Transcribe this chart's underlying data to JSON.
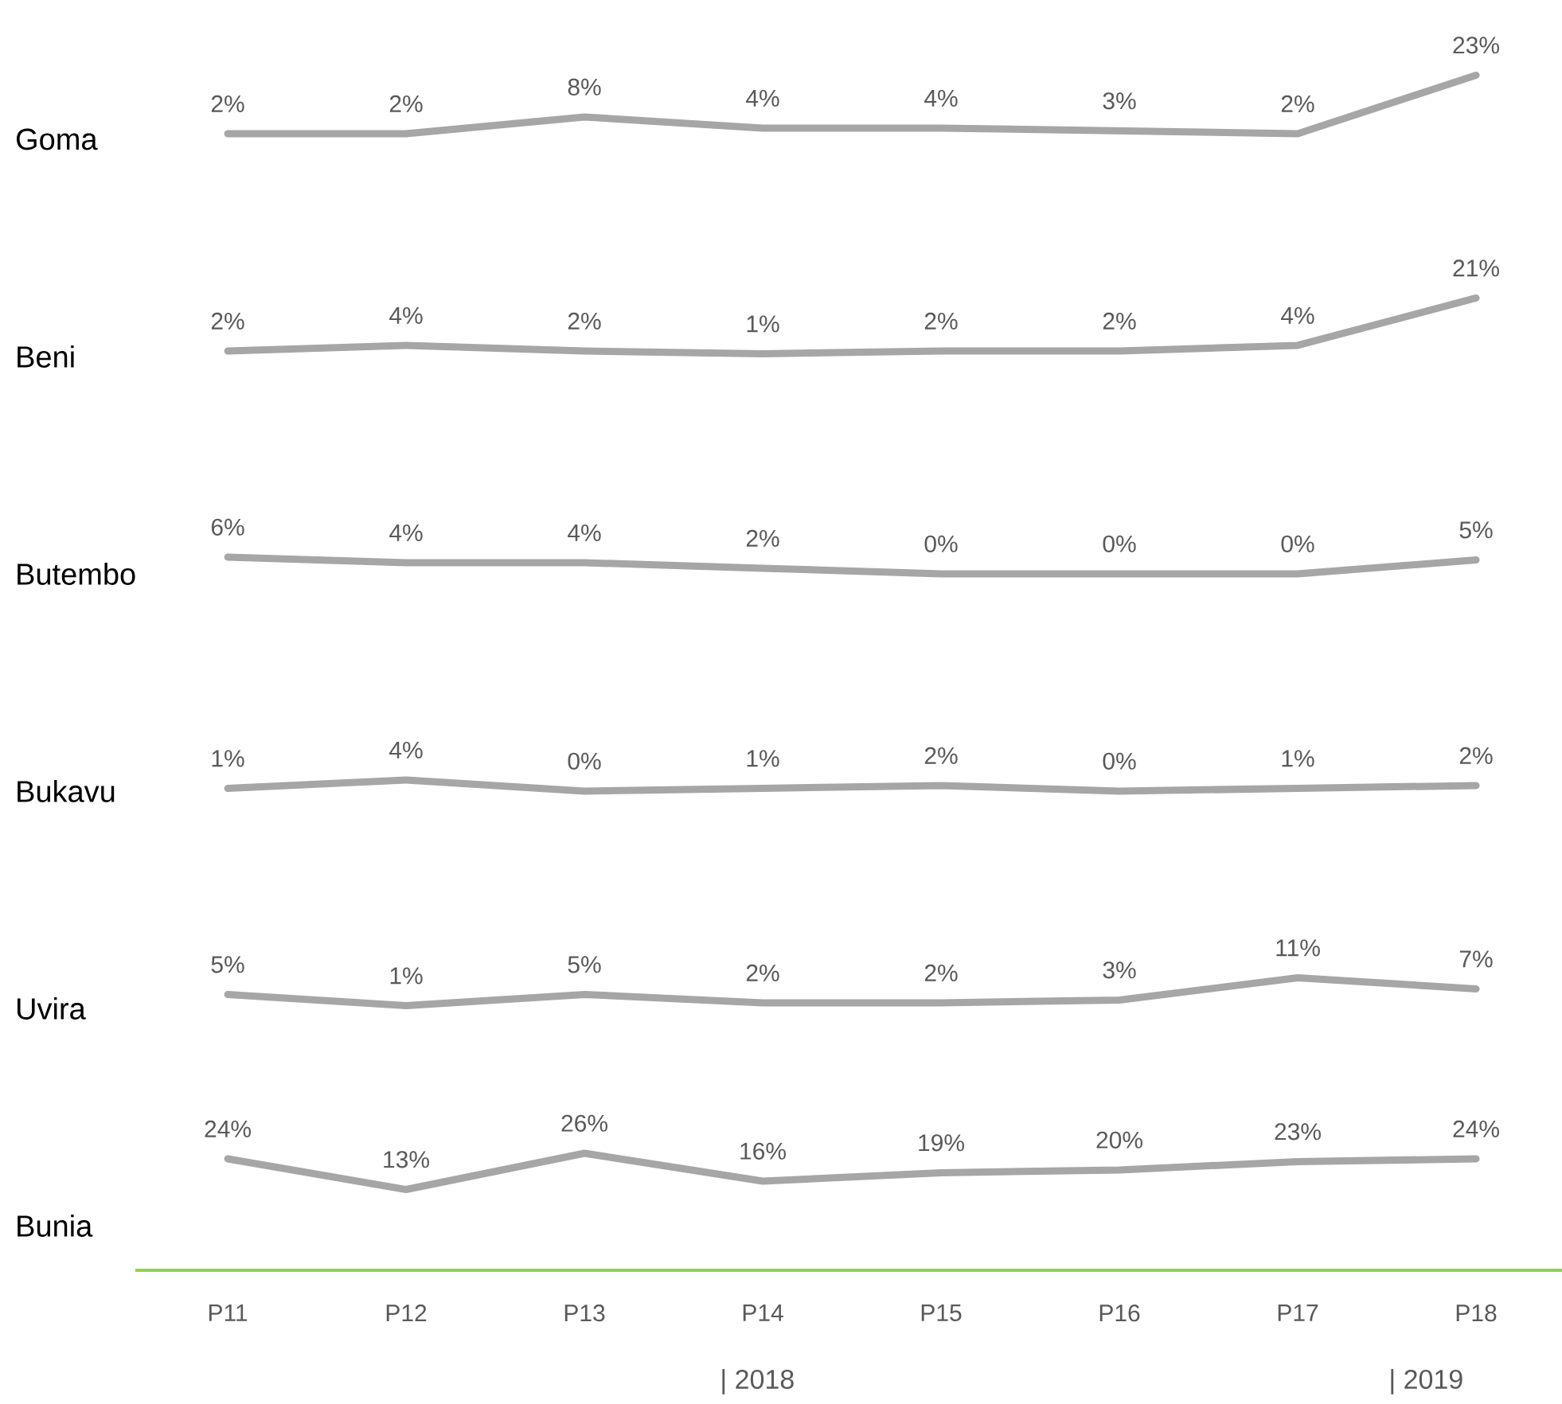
{
  "chart_data": [
    {
      "type": "line",
      "ylabel": "Goma",
      "tick_labels": false,
      "series": [
        {
          "color": "#a6a6a6",
          "values": [
            2,
            2,
            8,
            4,
            4,
            3,
            2,
            23
          ],
          "value_labels": [
            "2%",
            "2%",
            "8%",
            "4%",
            "4%",
            "3%",
            "2%",
            "23%"
          ]
        }
      ]
    },
    {
      "type": "line",
      "ylabel": "Beni",
      "tick_labels": false,
      "series": [
        {
          "color": "#a6a6a6",
          "values": [
            2,
            4,
            2,
            1,
            2,
            2,
            4,
            21
          ],
          "value_labels": [
            "2%",
            "4%",
            "2%",
            "1%",
            "2%",
            "2%",
            "4%",
            "21%"
          ]
        }
      ]
    },
    {
      "type": "line",
      "ylabel": "Butembo",
      "tick_labels": false,
      "series": [
        {
          "color": "#a6a6a6",
          "values": [
            6,
            4,
            4,
            2,
            0,
            0,
            0,
            5
          ],
          "value_labels": [
            "6%",
            "4%",
            "4%",
            "2%",
            "0%",
            "0%",
            "0%",
            "5%"
          ]
        }
      ]
    },
    {
      "type": "line",
      "ylabel": "Bukavu",
      "tick_labels": false,
      "series": [
        {
          "color": "#a6a6a6",
          "values": [
            1,
            4,
            0,
            1,
            2,
            0,
            1,
            2
          ],
          "value_labels": [
            "1%",
            "4%",
            "0%",
            "1%",
            "2%",
            "0%",
            "1%",
            "2%"
          ]
        }
      ]
    },
    {
      "type": "line",
      "ylabel": "Uvira",
      "tick_labels": false,
      "series": [
        {
          "color": "#a6a6a6",
          "values": [
            5,
            1,
            5,
            2,
            2,
            3,
            11,
            7
          ],
          "value_labels": [
            "5%",
            "1%",
            "5%",
            "2%",
            "2%",
            "3%",
            "11%",
            "7%"
          ]
        }
      ]
    },
    {
      "type": "line",
      "ylabel": "Bunia",
      "categories": [
        "P11",
        "P12",
        "P13",
        "P14",
        "P15",
        "P16",
        "P17",
        "P18"
      ],
      "tick_labels": "x",
      "series": [
        {
          "color": "#a6a6a6",
          "values": [
            24,
            13,
            26,
            16,
            19,
            20,
            23,
            24
          ],
          "value_labels": [
            "24%",
            "13%",
            "26%",
            "16%",
            "19%",
            "20%",
            "23%",
            "24%"
          ]
        }
      ],
      "annotations": [
        "| 2018",
        "| 2019"
      ]
    }
  ]
}
